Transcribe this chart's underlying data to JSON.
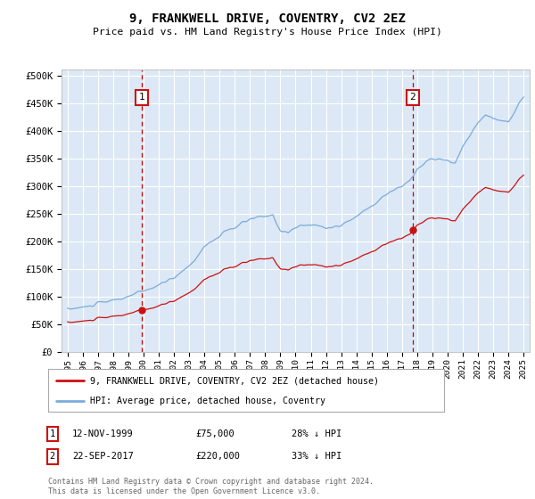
{
  "title": "9, FRANKWELL DRIVE, COVENTRY, CV2 2EZ",
  "subtitle": "Price paid vs. HM Land Registry's House Price Index (HPI)",
  "hpi_label": "HPI: Average price, detached house, Coventry",
  "property_label": "9, FRANKWELL DRIVE, COVENTRY, CV2 2EZ (detached house)",
  "footnote": "Contains HM Land Registry data © Crown copyright and database right 2024.\nThis data is licensed under the Open Government Licence v3.0.",
  "sale1_date": "12-NOV-1999",
  "sale1_price": 75000,
  "sale1_note": "28% ↓ HPI",
  "sale2_date": "22-SEP-2017",
  "sale2_price": 220000,
  "sale2_note": "33% ↓ HPI",
  "ylim": [
    0,
    500000
  ],
  "yticks": [
    0,
    50000,
    100000,
    150000,
    200000,
    250000,
    300000,
    350000,
    400000,
    450000,
    500000
  ],
  "plot_bg": "#dce8f5",
  "hpi_color": "#7aabdb",
  "property_color": "#cc1111",
  "vline_color": "#cc0000",
  "box_color": "#cc1111",
  "t_sale1": 1999.875,
  "t_sale2": 2017.708,
  "hpi_keypoints_x": [
    1995,
    1996,
    1997,
    1998,
    1999,
    2000,
    2001,
    2002,
    2003,
    2004,
    2005,
    2006,
    2007,
    2008,
    2008.5,
    2009,
    2009.5,
    2010,
    2011,
    2012,
    2013,
    2014,
    2015,
    2016,
    2017,
    2017.5,
    2018,
    2019,
    2020,
    2020.5,
    2021,
    2022,
    2022.5,
    2023,
    2024,
    2024.5,
    2025
  ],
  "hpi_keypoints_y": [
    77000,
    80000,
    87000,
    93000,
    100000,
    110000,
    120000,
    135000,
    155000,
    190000,
    210000,
    225000,
    240000,
    245000,
    248000,
    220000,
    215000,
    225000,
    230000,
    225000,
    228000,
    245000,
    265000,
    285000,
    300000,
    310000,
    330000,
    350000,
    345000,
    340000,
    370000,
    415000,
    430000,
    420000,
    415000,
    440000,
    460000
  ],
  "noise_seed": 10,
  "noise_scale": 3000
}
